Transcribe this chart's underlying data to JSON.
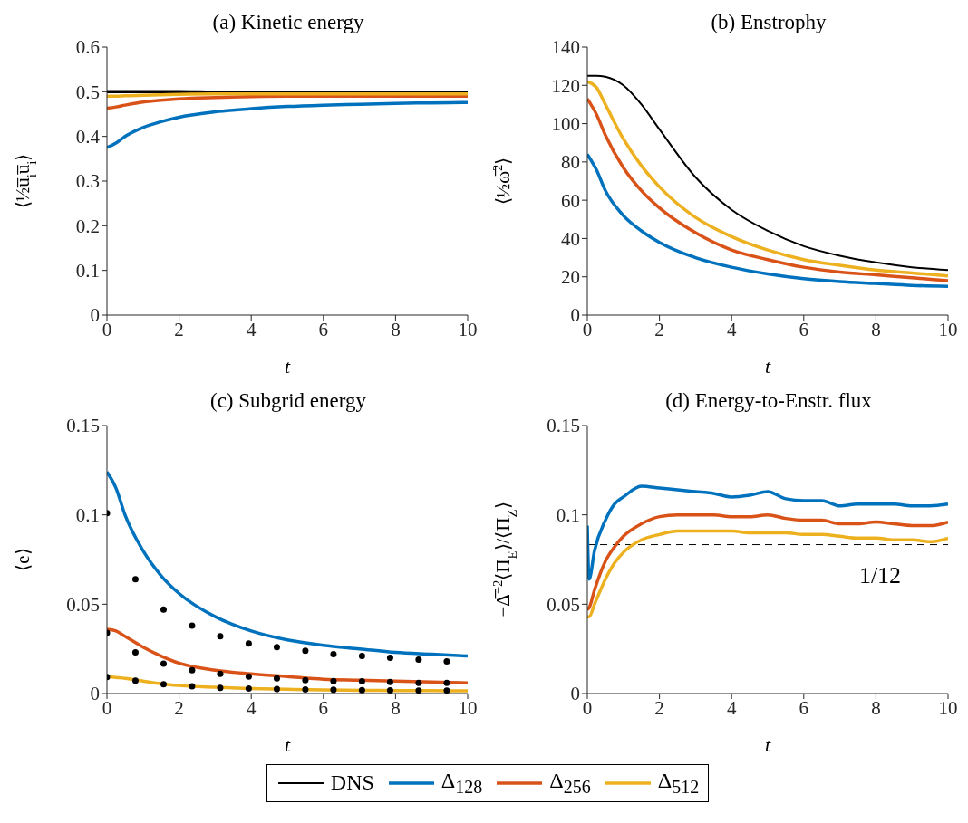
{
  "chart_data": [
    {
      "type": "line",
      "title": "(a) Kinetic energy",
      "xlabel": "t",
      "ylabel": "⟨½u̅$_{i}$u̅$_{i}$⟩",
      "xlim": [
        0,
        10
      ],
      "xticks": [
        0,
        2,
        4,
        6,
        8,
        10
      ],
      "ylim": [
        0,
        0.6
      ],
      "yticks": [
        0,
        0.1,
        0.2,
        0.3,
        0.4,
        0.5,
        0.6
      ],
      "legend": "bottom",
      "x": [
        0,
        0.25,
        0.5,
        1,
        1.5,
        2,
        3,
        4,
        5,
        6,
        7,
        8,
        9,
        10
      ],
      "series": [
        {
          "name": "DNS",
          "color": "#000000",
          "values": [
            0.5,
            0.5,
            0.5,
            0.5,
            0.5,
            0.5,
            0.499,
            0.499,
            0.498,
            0.498,
            0.498,
            0.497,
            0.497,
            0.497
          ]
        },
        {
          "name": "Δ$_{128}$",
          "color": "#0072bd",
          "values": [
            0.375,
            0.385,
            0.4,
            0.42,
            0.433,
            0.443,
            0.455,
            0.462,
            0.467,
            0.47,
            0.472,
            0.474,
            0.475,
            0.476
          ]
        },
        {
          "name": "Δ$_{256}$",
          "color": "#d95319",
          "values": [
            0.463,
            0.466,
            0.47,
            0.477,
            0.481,
            0.484,
            0.487,
            0.489,
            0.49,
            0.49,
            0.49,
            0.49,
            0.49,
            0.49
          ]
        },
        {
          "name": "Δ$_{512}$",
          "color": "#edb120",
          "values": [
            0.49,
            0.49,
            0.491,
            0.492,
            0.493,
            0.494,
            0.495,
            0.495,
            0.495,
            0.495,
            0.495,
            0.495,
            0.495,
            0.495
          ]
        }
      ]
    },
    {
      "type": "line",
      "title": "(b) Enstrophy",
      "xlabel": "t",
      "ylabel": "⟨½ω̅$^{2}$⟩",
      "xlim": [
        0,
        10
      ],
      "xticks": [
        0,
        2,
        4,
        6,
        8,
        10
      ],
      "ylim": [
        0,
        140
      ],
      "yticks": [
        0,
        20,
        40,
        60,
        80,
        100,
        120,
        140
      ],
      "x": [
        0,
        0.25,
        0.5,
        1,
        1.5,
        2,
        3,
        4,
        5,
        6,
        7,
        8,
        9,
        10
      ],
      "series": [
        {
          "color": "#000000",
          "values": [
            125,
            125,
            124.5,
            120,
            110,
            97,
            72,
            55,
            44,
            36,
            31,
            27.5,
            25,
            23.5
          ]
        },
        {
          "color": "#0072bd",
          "values": [
            84,
            76,
            65,
            52,
            44,
            38,
            30,
            25,
            21.5,
            19,
            17.5,
            16.5,
            15.5,
            15
          ]
        },
        {
          "color": "#d95319",
          "values": [
            113,
            105,
            94,
            77,
            65,
            56,
            43,
            34,
            29,
            25,
            22.5,
            21,
            19.5,
            18
          ]
        },
        {
          "color": "#edb120",
          "values": [
            122,
            119,
            110,
            92,
            78,
            67,
            51,
            41,
            34,
            29,
            26,
            23.5,
            22,
            20.5
          ]
        }
      ]
    },
    {
      "type": "line",
      "title": "(c) Subgrid energy",
      "xlabel": "t",
      "ylabel": "⟨e⟩",
      "xlim": [
        0,
        10
      ],
      "xticks": [
        0,
        2,
        4,
        6,
        8,
        10
      ],
      "ylim": [
        0,
        0.15
      ],
      "yticks": [
        0,
        0.05,
        0.1,
        0.15
      ],
      "x": [
        0,
        0.25,
        0.5,
        1,
        1.5,
        2,
        3,
        4,
        5,
        6,
        7,
        8,
        9,
        10
      ],
      "series": [
        {
          "color": "#0072bd",
          "values": [
            0.124,
            0.115,
            0.1,
            0.08,
            0.066,
            0.056,
            0.043,
            0.035,
            0.03,
            0.027,
            0.025,
            0.023,
            0.022,
            0.021
          ]
        },
        {
          "color": "#d95319",
          "values": [
            0.036,
            0.035,
            0.032,
            0.026,
            0.021,
            0.017,
            0.013,
            0.011,
            0.0095,
            0.008,
            0.0075,
            0.007,
            0.0065,
            0.006
          ]
        },
        {
          "color": "#edb120",
          "values": [
            0.0095,
            0.009,
            0.0085,
            0.007,
            0.0055,
            0.0045,
            0.0035,
            0.0028,
            0.0024,
            0.002,
            0.0018,
            0.0017,
            0.0016,
            0.0015
          ]
        },
        {
          "type": "scatter",
          "color": "#000000",
          "x": [
            0,
            0.79,
            1.57,
            2.36,
            3.14,
            3.93,
            4.71,
            5.5,
            6.28,
            7.07,
            7.85,
            8.64,
            9.42
          ],
          "values": [
            0.101,
            0.064,
            0.047,
            0.038,
            0.032,
            0.028,
            0.026,
            0.024,
            0.022,
            0.021,
            0.02,
            0.019,
            0.018
          ]
        },
        {
          "type": "scatter",
          "color": "#000000",
          "x": [
            0,
            0.79,
            1.57,
            2.36,
            3.14,
            3.93,
            4.71,
            5.5,
            6.28,
            7.07,
            7.85,
            8.64,
            9.42
          ],
          "values": [
            0.034,
            0.023,
            0.0167,
            0.013,
            0.011,
            0.0095,
            0.0085,
            0.0075,
            0.007,
            0.0068,
            0.0065,
            0.006,
            0.006
          ]
        },
        {
          "type": "scatter",
          "color": "#000000",
          "x": [
            0,
            0.79,
            1.57,
            2.36,
            3.14,
            3.93,
            4.71,
            5.5,
            6.28,
            7.07,
            7.85,
            8.64,
            9.42
          ],
          "values": [
            0.0092,
            0.0072,
            0.0052,
            0.004,
            0.0032,
            0.0028,
            0.0025,
            0.0023,
            0.0021,
            0.0019,
            0.0018,
            0.0017,
            0.0017
          ]
        }
      ]
    },
    {
      "type": "line",
      "title": "(d) Energy-to-Enstr. flux",
      "xlabel": "t",
      "ylabel": "−Δ̅$^{−2}$⟨Π$_{E}$⟩/⟨Π$_{Z}$⟩",
      "xlim": [
        0,
        10
      ],
      "xticks": [
        0,
        2,
        4,
        6,
        8,
        10
      ],
      "ylim": [
        0,
        0.15
      ],
      "yticks": [
        0,
        0.05,
        0.1,
        0.15
      ],
      "ref_lines": [
        {
          "axis": "y",
          "value": 0.083333,
          "color": "#000000",
          "line_style": "dashed"
        }
      ],
      "annotations": [
        "1/12"
      ],
      "x": [
        0,
        0.05,
        0.2,
        0.5,
        0.75,
        1,
        1.5,
        2,
        2.5,
        3,
        3.5,
        4,
        4.5,
        5,
        5.5,
        6,
        6.5,
        7,
        7.5,
        8,
        8.5,
        9,
        9.5,
        10
      ],
      "series": [
        {
          "color": "#0072bd",
          "values": [
            0.094,
            0.064,
            0.08,
            0.097,
            0.106,
            0.11,
            0.116,
            0.115,
            0.114,
            0.113,
            0.112,
            0.11,
            0.111,
            0.113,
            0.109,
            0.108,
            0.108,
            0.105,
            0.106,
            0.106,
            0.106,
            0.105,
            0.105,
            0.106
          ]
        },
        {
          "color": "#d95319",
          "values": [
            0.047,
            0.048,
            0.058,
            0.074,
            0.082,
            0.088,
            0.095,
            0.099,
            0.1,
            0.1,
            0.1,
            0.099,
            0.099,
            0.1,
            0.098,
            0.097,
            0.097,
            0.095,
            0.095,
            0.096,
            0.095,
            0.094,
            0.094,
            0.096
          ]
        },
        {
          "color": "#edb120",
          "values": [
            0.043,
            0.043,
            0.05,
            0.064,
            0.073,
            0.079,
            0.086,
            0.089,
            0.091,
            0.091,
            0.091,
            0.091,
            0.09,
            0.09,
            0.09,
            0.089,
            0.089,
            0.088,
            0.087,
            0.087,
            0.086,
            0.086,
            0.085,
            0.087
          ]
        }
      ]
    }
  ]
}
